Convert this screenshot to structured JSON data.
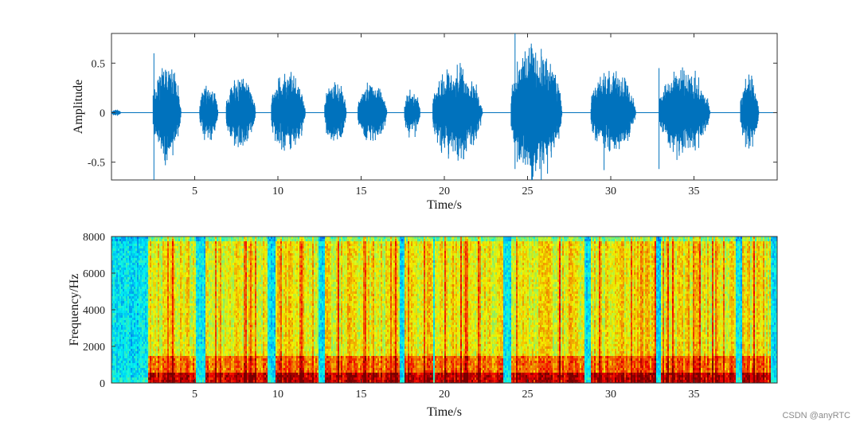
{
  "watermark": "CSDN @anyRTC",
  "chart_data": [
    {
      "type": "line",
      "name": "waveform",
      "title": "",
      "xlabel": "Time/s",
      "ylabel": "Amplitude",
      "xlim": [
        0,
        40
      ],
      "ylim": [
        -0.68,
        0.8
      ],
      "xticks": [
        5,
        10,
        15,
        20,
        25,
        30,
        35
      ],
      "yticks": [
        -0.5,
        0,
        0.5
      ],
      "line_color": "#0072BD",
      "segments": [
        {
          "start": 0.0,
          "end": 0.8,
          "amp": 0.04
        },
        {
          "start": 2.5,
          "end": 4.8,
          "amp": 0.58,
          "min": -0.68
        },
        {
          "start": 5.3,
          "end": 6.8,
          "amp": 0.33
        },
        {
          "start": 6.9,
          "end": 9.3,
          "amp": 0.4
        },
        {
          "start": 9.6,
          "end": 12.4,
          "amp": 0.47
        },
        {
          "start": 12.8,
          "end": 14.6,
          "amp": 0.36
        },
        {
          "start": 14.8,
          "end": 17.2,
          "amp": 0.35
        },
        {
          "start": 17.6,
          "end": 18.9,
          "amp": 0.28
        },
        {
          "start": 19.3,
          "end": 23.4,
          "amp": 0.55
        },
        {
          "start": 24.0,
          "end": 28.2,
          "amp": 0.78,
          "min": -0.58
        },
        {
          "start": 28.8,
          "end": 32.5,
          "amp": 0.48,
          "min": -0.58
        },
        {
          "start": 32.9,
          "end": 37.1,
          "amp": 0.5,
          "min": -0.57
        },
        {
          "start": 37.8,
          "end": 39.3,
          "amp": 0.42
        }
      ]
    },
    {
      "type": "heatmap",
      "name": "spectrogram",
      "title": "",
      "xlabel": "Time/s",
      "ylabel": "Frequency/Hz",
      "xlim": [
        0,
        40
      ],
      "ylim": [
        0,
        8000
      ],
      "xticks": [
        5,
        10,
        15,
        20,
        25,
        30,
        35
      ],
      "yticks": [
        0,
        2000,
        4000,
        6000,
        8000
      ],
      "colormap": "jet",
      "speech_regions": [
        [
          2.2,
          5.0
        ],
        [
          5.6,
          9.3
        ],
        [
          9.8,
          12.4
        ],
        [
          12.8,
          17.3
        ],
        [
          17.6,
          19.3
        ],
        [
          19.4,
          23.5
        ],
        [
          24.0,
          28.4
        ],
        [
          28.8,
          32.7
        ],
        [
          33.0,
          37.5
        ],
        [
          37.8,
          39.6
        ]
      ]
    }
  ]
}
